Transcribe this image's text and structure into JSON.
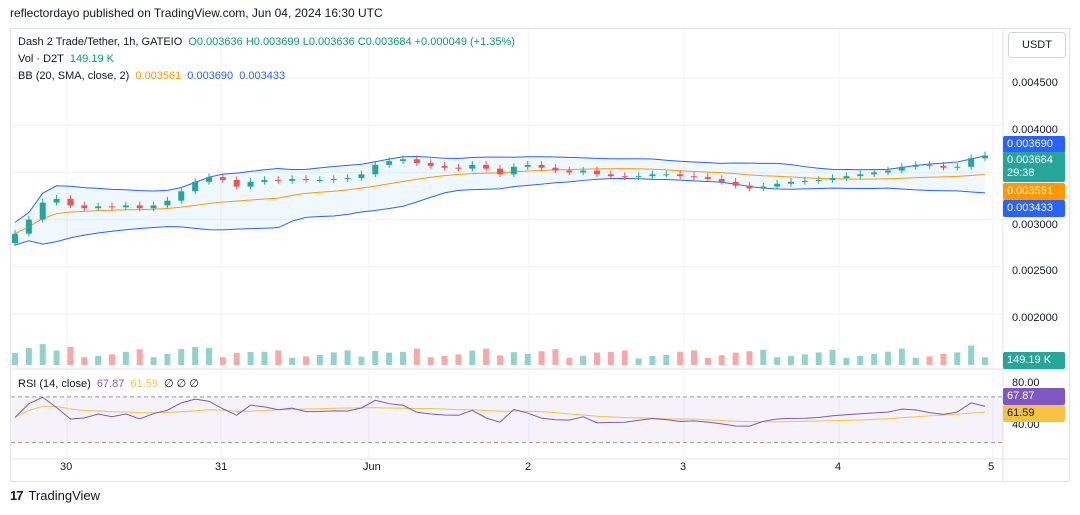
{
  "header": {
    "published_by": "reflectordayo published on TradingView.com, Jun 04, 2024 16:30 UTC"
  },
  "legend": {
    "symbol": "Dash 2 Trade/Tether, 1h, GATEIO",
    "ohlc": "O0.003636 H0.003699 L0.003636 C0.003684 +0.000049 (+1.35%)",
    "vol_label": "Vol · D2T",
    "vol_value": "149.19 K",
    "bb_label": "BB (20, SMA, close, 2)",
    "bb_basis": "0.003561",
    "bb_upper": "0.003690",
    "bb_lower": "0.003433",
    "rsi_label": "RSI (14, close)",
    "rsi_value": "67.87",
    "rsi_ma": "61.59",
    "rsi_empty": "∅ ∅ ∅"
  },
  "currency_button": "USDT",
  "price_axis_ticks": [
    "0.004500",
    "0.004000",
    "0.003000",
    "0.002500",
    "0.002000"
  ],
  "rsi_axis_ticks": [
    "80.00",
    "40.00"
  ],
  "price_labels": {
    "upper": "0.003690",
    "last": "0.003684",
    "countdown": "29:38",
    "basis": "0.003561",
    "lower": "0.003433",
    "volume": "149.19 K",
    "rsi": "67.87",
    "rsi_ma": "61.59"
  },
  "time_axis": [
    "30",
    "31",
    "Jun",
    "2",
    "3",
    "4",
    "5"
  ],
  "footer": {
    "brand": "TradingView",
    "logo": "17"
  },
  "colors": {
    "up": "#26a69a",
    "down": "#ef5350",
    "bb_basis": "#ff9800",
    "bb_band": "#2962ff",
    "rsi": "#7e57c2",
    "rsi_ma": "#f5c242"
  },
  "chart_data": {
    "type": "candlestick",
    "price_range": [
      0.0015,
      0.005
    ],
    "close_series_approx": [
      0.00285,
      0.003,
      0.00318,
      0.00322,
      0.00315,
      0.00312,
      0.00314,
      0.00313,
      0.00315,
      0.00312,
      0.00315,
      0.0032,
      0.0033,
      0.0034,
      0.00345,
      0.00342,
      0.00335,
      0.0034,
      0.00342,
      0.00341,
      0.00343,
      0.00342,
      0.00342,
      0.00343,
      0.00344,
      0.00348,
      0.00358,
      0.00362,
      0.00364,
      0.0036,
      0.00357,
      0.00355,
      0.00354,
      0.00358,
      0.00354,
      0.00348,
      0.00356,
      0.00358,
      0.00355,
      0.00352,
      0.0035,
      0.00352,
      0.00348,
      0.00346,
      0.00345,
      0.00346,
      0.00348,
      0.00348,
      0.00346,
      0.00345,
      0.00343,
      0.0034,
      0.00336,
      0.00333,
      0.00335,
      0.00338,
      0.0034,
      0.00341,
      0.00342,
      0.00344,
      0.00346,
      0.00348,
      0.0035,
      0.00352,
      0.00356,
      0.00358,
      0.00357,
      0.00355,
      0.00356,
      0.00365,
      0.00368
    ],
    "rsi_range": [
      20,
      90
    ]
  }
}
